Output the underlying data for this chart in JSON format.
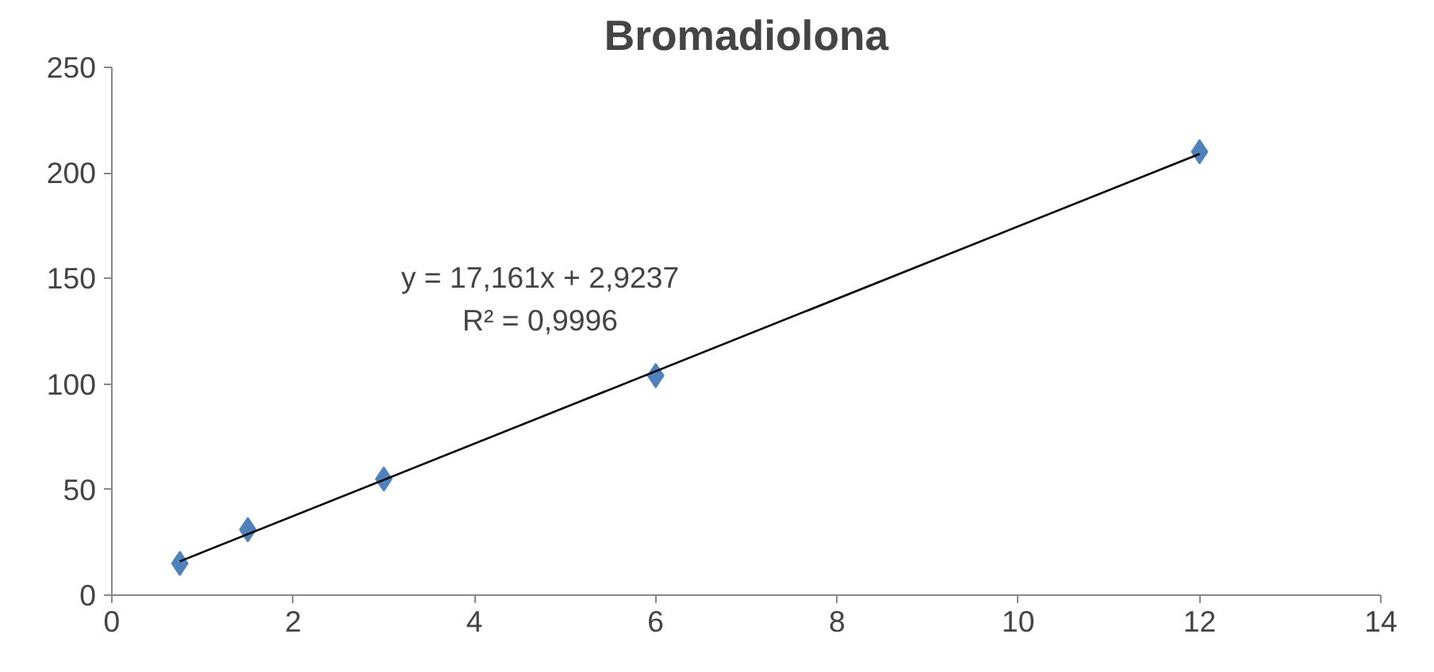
{
  "chart_data": {
    "type": "scatter",
    "title": "Bromadiolona",
    "series": [
      {
        "color": "#4f81bd",
        "marker": "diamond",
        "x": [
          0.75,
          1.5,
          3,
          6,
          12
        ],
        "values": [
          15,
          31,
          55,
          104,
          210
        ]
      },
      {
        "type": "line",
        "color": "#000000",
        "marker": "none",
        "line_style": "solid",
        "x": [
          0.75,
          12
        ],
        "values": [
          16,
          209
        ]
      }
    ],
    "annotations": [
      "y = 17,161x + 2,9237",
      "R² = 0,9996"
    ],
    "xlim": [
      0,
      14
    ],
    "xticks": [
      0,
      2,
      4,
      6,
      8,
      10,
      12,
      14
    ],
    "ylim": [
      0,
      250
    ],
    "yticks": [
      0,
      50,
      100,
      150,
      200,
      250
    ],
    "grid": false
  }
}
